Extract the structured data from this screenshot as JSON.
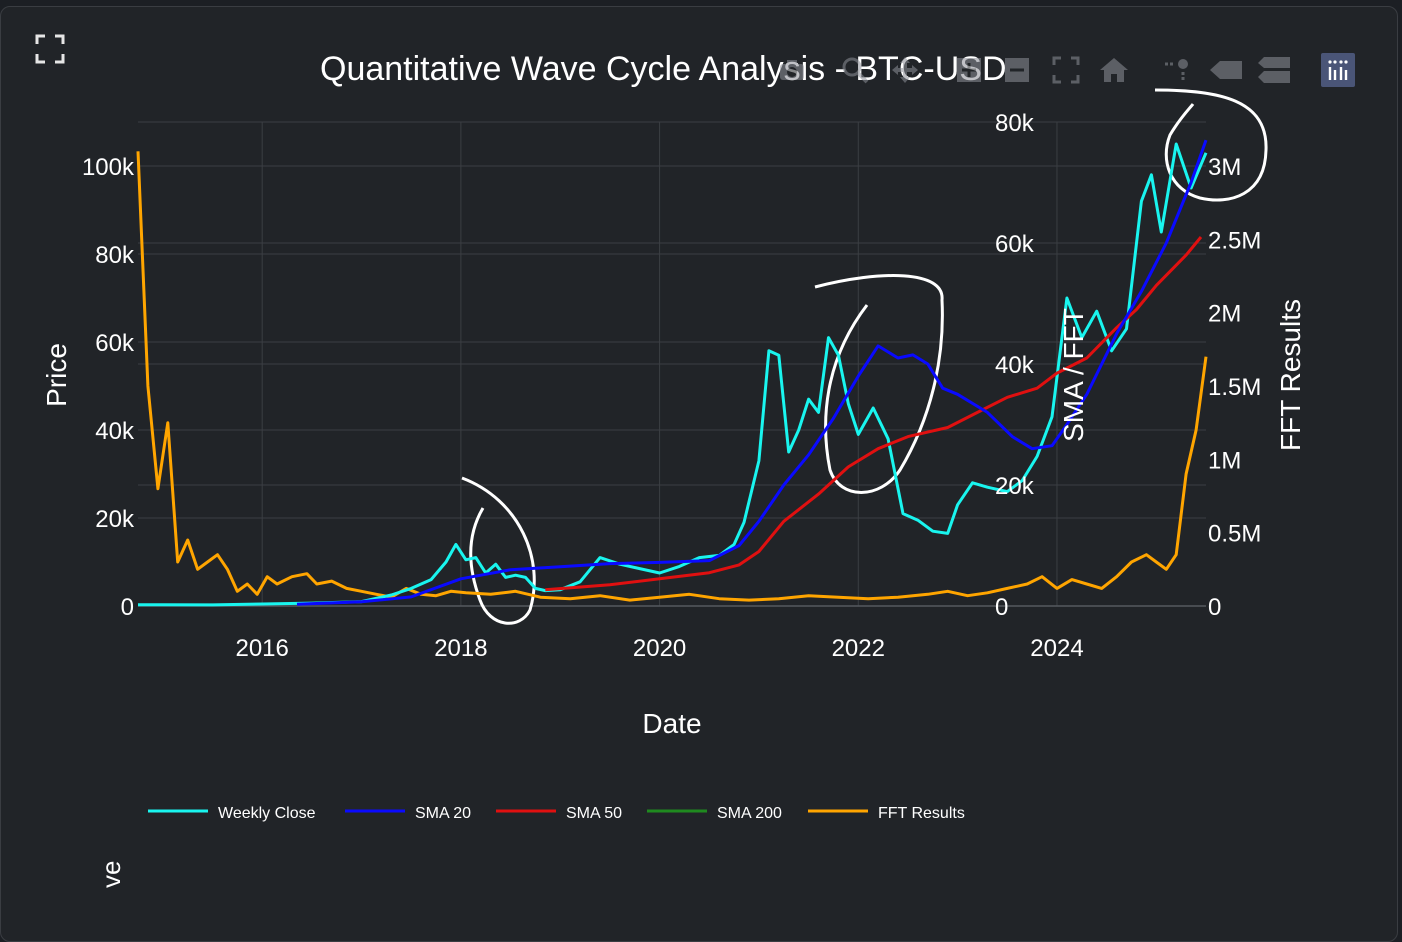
{
  "chart_data": {
    "type": "line",
    "title": "Quantitative Wave Cycle Analysis - BTC-USD",
    "xlabel": "Date",
    "ylabel": "Price",
    "y2label": "SMA / FFT",
    "y3label": "FFT Results",
    "x_ticks": [
      "2016",
      "2018",
      "2020",
      "2022",
      "2024"
    ],
    "y_ticks": [
      "0",
      "20k",
      "40k",
      "60k",
      "80k",
      "100k"
    ],
    "y2_ticks": [
      "0",
      "20k",
      "40k",
      "60k",
      "80k"
    ],
    "y3_ticks": [
      "0",
      "0.5M",
      "1M",
      "1.5M",
      "2M",
      "2.5M",
      "3M"
    ],
    "xlim": [
      2014.75,
      2025.5
    ],
    "ylim": [
      0,
      110000
    ],
    "y2lim": [
      0,
      80000
    ],
    "y3lim": [
      0,
      3300000
    ],
    "grid": true,
    "legend_position": "bottom-left",
    "series": [
      {
        "name": "Weekly Close",
        "color": "#19f5ef",
        "axis": "y",
        "x": [
          2014.75,
          2015.0,
          2015.5,
          2016.0,
          2016.5,
          2017.0,
          2017.3,
          2017.5,
          2017.7,
          2017.85,
          2017.95,
          2018.05,
          2018.15,
          2018.25,
          2018.35,
          2018.45,
          2018.55,
          2018.65,
          2018.75,
          2018.85,
          2019.0,
          2019.2,
          2019.4,
          2019.6,
          2019.8,
          2020.0,
          2020.2,
          2020.4,
          2020.6,
          2020.75,
          2020.85,
          2021.0,
          2021.1,
          2021.2,
          2021.3,
          2021.4,
          2021.5,
          2021.6,
          2021.7,
          2021.8,
          2021.9,
          2022.0,
          2022.15,
          2022.3,
          2022.45,
          2022.6,
          2022.75,
          2022.9,
          2023.0,
          2023.15,
          2023.3,
          2023.5,
          2023.65,
          2023.8,
          2023.95,
          2024.1,
          2024.25,
          2024.4,
          2024.55,
          2024.7,
          2024.85,
          2024.95,
          2025.05,
          2025.2,
          2025.35,
          2025.5
        ],
        "values": [
          300,
          300,
          250,
          450,
          650,
          1000,
          2500,
          4000,
          6000,
          10000,
          14000,
          10500,
          11000,
          7500,
          9500,
          6500,
          7000,
          6500,
          4000,
          3500,
          3700,
          5500,
          11000,
          9500,
          8500,
          7500,
          9000,
          11000,
          11500,
          14000,
          19000,
          33000,
          58000,
          57000,
          35000,
          40000,
          47000,
          44000,
          61000,
          57000,
          46000,
          39000,
          45000,
          38000,
          21000,
          19500,
          17000,
          16500,
          23000,
          28000,
          27000,
          26000,
          28500,
          34000,
          43000,
          70000,
          61000,
          67000,
          58000,
          63000,
          92000,
          98000,
          85000,
          105000,
          95000,
          103000
        ]
      },
      {
        "name": "SMA 20",
        "color": "#0a0aff",
        "axis": "y2",
        "x": [
          2016.35,
          2017.0,
          2017.5,
          2018.0,
          2018.5,
          2019.0,
          2019.5,
          2020.0,
          2020.5,
          2020.8,
          2021.0,
          2021.25,
          2021.5,
          2021.75,
          2022.0,
          2022.2,
          2022.4,
          2022.55,
          2022.7,
          2022.85,
          2023.0,
          2023.3,
          2023.55,
          2023.75,
          2023.95,
          2024.1,
          2024.3,
          2024.6,
          2024.85,
          2025.1,
          2025.35,
          2025.5
        ],
        "values": [
          300,
          700,
          1500,
          4500,
          6000,
          6500,
          7000,
          7200,
          7500,
          10000,
          14000,
          20000,
          25000,
          31000,
          38000,
          43000,
          41000,
          41500,
          40000,
          36000,
          35000,
          32000,
          28000,
          26000,
          26500,
          30000,
          35000,
          45000,
          52000,
          60000,
          70000,
          77000
        ]
      },
      {
        "name": "SMA 50",
        "color": "#e01010",
        "axis": "y2",
        "x": [
          2018.85,
          2019.5,
          2020.0,
          2020.5,
          2020.8,
          2021.0,
          2021.25,
          2021.6,
          2021.9,
          2022.2,
          2022.5,
          2022.9,
          2023.2,
          2023.5,
          2023.8,
          2024.0,
          2024.3,
          2024.6,
          2024.8,
          2025.0,
          2025.3,
          2025.45
        ],
        "values": [
          2700,
          3500,
          4500,
          5500,
          6800,
          9000,
          14000,
          18500,
          23000,
          26000,
          28000,
          29500,
          32000,
          34500,
          36000,
          38500,
          41000,
          46000,
          49000,
          53000,
          58000,
          61000
        ]
      },
      {
        "name": "SMA 200",
        "color": "#1f8a1f",
        "axis": "y2",
        "x": [],
        "values": []
      },
      {
        "name": "FFT Results",
        "color": "#ffa500",
        "axis": "y3",
        "x": [
          2014.75,
          2014.85,
          2014.95,
          2015.05,
          2015.15,
          2015.25,
          2015.35,
          2015.45,
          2015.55,
          2015.65,
          2015.75,
          2015.85,
          2015.95,
          2016.05,
          2016.15,
          2016.3,
          2016.45,
          2016.55,
          2016.7,
          2016.85,
          2017.0,
          2017.15,
          2017.3,
          2017.45,
          2017.6,
          2017.75,
          2017.9,
          2018.05,
          2018.3,
          2018.55,
          2018.8,
          2019.1,
          2019.4,
          2019.7,
          2020.0,
          2020.3,
          2020.6,
          2020.9,
          2021.2,
          2021.5,
          2021.8,
          2022.1,
          2022.4,
          2022.7,
          2022.9,
          2023.1,
          2023.3,
          2023.5,
          2023.7,
          2023.85,
          2024.0,
          2024.15,
          2024.3,
          2024.45,
          2024.6,
          2024.75,
          2024.9,
          2025.0,
          2025.1,
          2025.2,
          2025.3,
          2025.4,
          2025.5
        ],
        "values": [
          3100000,
          1500000,
          800000,
          1250000,
          300000,
          450000,
          250000,
          300000,
          350000,
          250000,
          100000,
          150000,
          80000,
          200000,
          150000,
          200000,
          220000,
          150000,
          170000,
          120000,
          100000,
          80000,
          60000,
          120000,
          80000,
          70000,
          100000,
          90000,
          80000,
          100000,
          60000,
          50000,
          70000,
          40000,
          60000,
          80000,
          50000,
          40000,
          50000,
          70000,
          60000,
          50000,
          60000,
          80000,
          100000,
          70000,
          90000,
          120000,
          150000,
          200000,
          120000,
          180000,
          150000,
          120000,
          200000,
          300000,
          350000,
          300000,
          250000,
          350000,
          900000,
          1200000,
          1700000
        ]
      }
    ]
  },
  "ui": {
    "bottom_label": "ve"
  }
}
